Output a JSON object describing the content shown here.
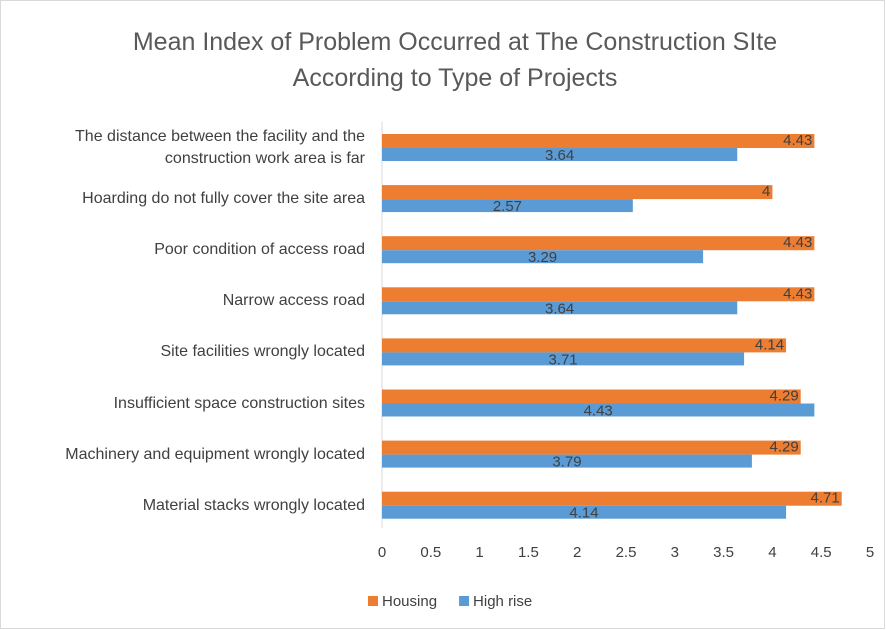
{
  "chart_data": {
    "type": "hbar",
    "title": "Mean Index of Problem Occurred at The Construction SIte According to Type of Projects",
    "categories": [
      "The distance between the facility and the construction work area is far",
      "Hoarding do not fully cover the site area",
      "Poor condition of access road",
      "Narrow access road",
      "Site facilities wrongly located",
      "Insufficient space construction sites",
      "Machinery and equipment wrongly located",
      "Material stacks wrongly located"
    ],
    "series": [
      {
        "name": "Housing",
        "color": "#ed7d31",
        "values": [
          4.43,
          4,
          4.43,
          4.43,
          4.14,
          4.29,
          4.29,
          4.71
        ]
      },
      {
        "name": "High rise",
        "color": "#5b9bd5",
        "values": [
          3.64,
          2.57,
          3.29,
          3.64,
          3.71,
          4.43,
          3.79,
          4.14
        ]
      }
    ],
    "xlim": [
      0,
      5
    ],
    "xticks": [
      0,
      0.5,
      1,
      1.5,
      2,
      2.5,
      3,
      3.5,
      4,
      4.5,
      5
    ],
    "grid": false,
    "legend": "bottom"
  }
}
